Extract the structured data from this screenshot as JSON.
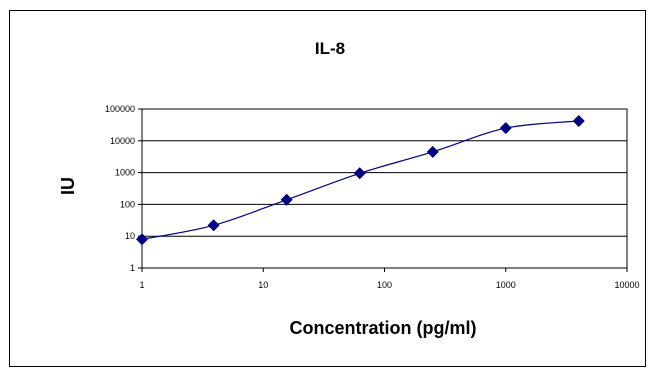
{
  "chart_data": {
    "type": "line",
    "title": "IL-8",
    "xlabel": "Concentration (pg/ml)",
    "ylabel": "IU",
    "x_scale": "log",
    "y_scale": "log",
    "xlim": [
      1,
      10000
    ],
    "ylim": [
      1,
      100000
    ],
    "x_ticks": [
      "1",
      "10",
      "100",
      "1000",
      "10000"
    ],
    "y_ticks": [
      "1",
      "10",
      "100",
      "1000",
      "10000",
      "100000"
    ],
    "grid": "horizontal",
    "legend": "none",
    "series": [
      {
        "x": [
          1,
          3.9,
          15.6,
          62.5,
          250,
          1000,
          4000
        ],
        "y": [
          8,
          22,
          140,
          950,
          4500,
          25000,
          42000
        ]
      }
    ],
    "colors": {
      "series": "#000080",
      "grid": "#000000",
      "frame": "#000000"
    }
  }
}
